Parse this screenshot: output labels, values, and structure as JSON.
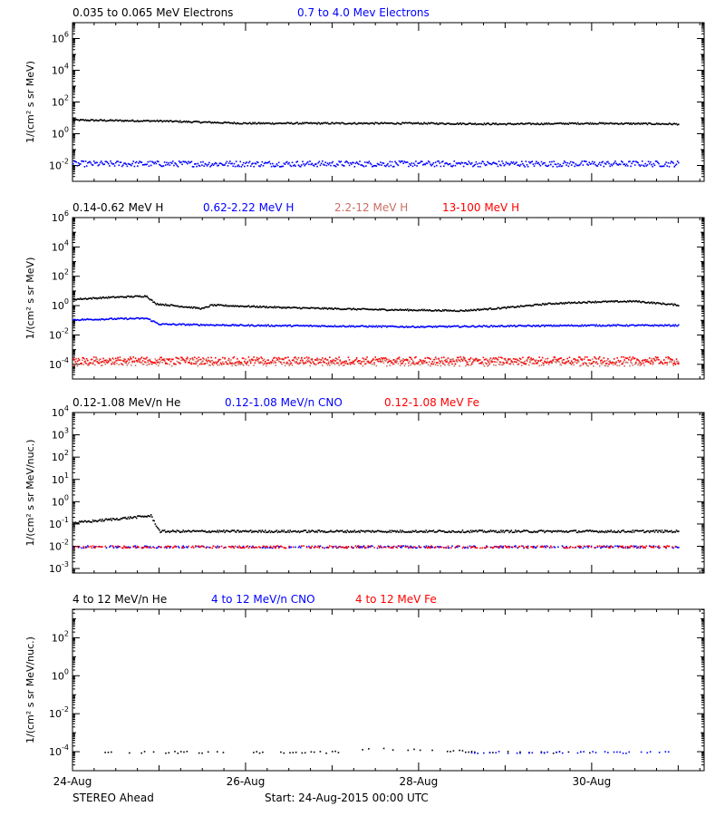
{
  "chart_data": [
    {
      "type": "scatter",
      "ylabel": "1/(cm² s sr MeV)",
      "y_scale": "log",
      "ylim_exp": [
        -3,
        7
      ],
      "ytick_exps": [
        -2,
        0,
        2,
        4,
        6
      ],
      "x_range_days": [
        0,
        7.3
      ],
      "series": [
        {
          "name": "0.035 to 0.065 MeV Electrons",
          "color": "#000000",
          "values": [
            [
              0,
              8
            ],
            [
              1,
              7
            ],
            [
              2,
              5
            ],
            [
              3,
              5
            ],
            [
              4,
              5
            ],
            [
              5,
              4.5
            ],
            [
              6,
              5
            ],
            [
              7,
              4.5
            ]
          ]
        },
        {
          "name": "0.7 to 4.0 Mev Electrons",
          "color": "#0000ff",
          "values": [
            [
              0,
              0.014
            ],
            [
              1,
              0.014
            ],
            [
              2,
              0.014
            ],
            [
              3,
              0.014
            ],
            [
              4,
              0.014
            ],
            [
              5,
              0.014
            ],
            [
              6,
              0.014
            ],
            [
              7,
              0.014
            ]
          ]
        }
      ]
    },
    {
      "type": "scatter",
      "ylabel": "1/(cm² s sr MeV)",
      "y_scale": "log",
      "ylim_exp": [
        -5,
        6
      ],
      "ytick_exps": [
        -4,
        -2,
        0,
        2,
        4,
        6
      ],
      "x_range_days": [
        0,
        7.3
      ],
      "series": [
        {
          "name": "0.14-0.62 MeV H",
          "color": "#000000",
          "values": [
            [
              0,
              3
            ],
            [
              0.4,
              4
            ],
            [
              0.85,
              5
            ],
            [
              0.95,
              1.5
            ],
            [
              1.5,
              0.7
            ],
            [
              1.6,
              1.2
            ],
            [
              2.5,
              0.8
            ],
            [
              3.5,
              0.6
            ],
            [
              4.5,
              0.5
            ],
            [
              5,
              0.8
            ],
            [
              5.5,
              1.5
            ],
            [
              6,
              2
            ],
            [
              6.5,
              2.2
            ],
            [
              7,
              1.2
            ]
          ]
        },
        {
          "name": "0.62-2.22 MeV H",
          "color": "#0000ff",
          "values": [
            [
              0,
              0.12
            ],
            [
              0.5,
              0.14
            ],
            [
              0.85,
              0.15
            ],
            [
              1,
              0.06
            ],
            [
              2,
              0.05
            ],
            [
              3,
              0.045
            ],
            [
              4,
              0.04
            ],
            [
              5,
              0.045
            ],
            [
              6,
              0.05
            ],
            [
              7,
              0.05
            ]
          ]
        },
        {
          "name": "2.2-12 MeV H",
          "color": "#c87064",
          "values": [
            [
              0,
              0.00015
            ],
            [
              7,
              0.00015
            ]
          ]
        },
        {
          "name": "13-100 MeV H",
          "color": "#ff0000",
          "values": [
            [
              0,
              0.0002
            ],
            [
              7,
              0.0002
            ]
          ]
        }
      ]
    },
    {
      "type": "scatter",
      "ylabel": "1/(cm² s sr MeV/nuc.)",
      "y_scale": "log",
      "ylim_exp": [
        -3.2,
        4
      ],
      "ytick_exps": [
        -3,
        -2,
        -1,
        0,
        1,
        2,
        3,
        4
      ],
      "x_range_days": [
        0,
        7.3
      ],
      "series": [
        {
          "name": "0.12-1.08 MeV/n He",
          "color": "#000000",
          "values": [
            [
              0,
              0.12
            ],
            [
              0.9,
              0.25
            ],
            [
              1,
              0.05
            ],
            [
              2,
              0.05
            ],
            [
              3,
              0.05
            ],
            [
              4,
              0.05
            ],
            [
              5,
              0.05
            ],
            [
              6,
              0.05
            ],
            [
              7,
              0.05
            ]
          ]
        },
        {
          "name": "0.12-1.08 MeV/n CNO",
          "color": "#0000ff",
          "values": [
            [
              0,
              0.01
            ],
            [
              7,
              0.01
            ]
          ]
        },
        {
          "name": "0.12-1.08 MeV Fe",
          "color": "#ff0000",
          "values": [
            [
              0,
              0.01
            ],
            [
              7,
              0.01
            ]
          ]
        }
      ]
    },
    {
      "type": "scatter",
      "ylabel": "1/(cm² s sr MeV/nuc.)",
      "y_scale": "log",
      "ylim_exp": [
        -5,
        3.5
      ],
      "ytick_exps": [
        -4,
        -2,
        0,
        2
      ],
      "x_range_days": [
        0,
        7.3
      ],
      "series": [
        {
          "name": "4 to 12 MeV/n He",
          "color": "#000000",
          "values": [
            [
              0.3,
              0.0001
            ],
            [
              1,
              0.0001
            ],
            [
              3,
              0.0001
            ],
            [
              3.5,
              0.00015
            ],
            [
              5,
              0.0001
            ],
            [
              6,
              0.0001
            ]
          ]
        },
        {
          "name": "4 to 12 MeV/n CNO",
          "color": "#0000ff",
          "values": [
            [
              4.5,
              0.0001
            ],
            [
              6.5,
              0.0001
            ],
            [
              7,
              0.0001
            ]
          ]
        },
        {
          "name": "4 to 12 MeV Fe",
          "color": "#ff0000",
          "values": []
        }
      ]
    }
  ],
  "x_axis": {
    "labels": [
      {
        "day": 0,
        "text": "24-Aug"
      },
      {
        "day": 2,
        "text": "26-Aug"
      },
      {
        "day": 4,
        "text": "28-Aug"
      },
      {
        "day": 6,
        "text": "30-Aug"
      }
    ]
  },
  "footer": {
    "spacecraft": "STEREO Ahead",
    "start": "Start: 24-Aug-2015 00:00 UTC"
  }
}
